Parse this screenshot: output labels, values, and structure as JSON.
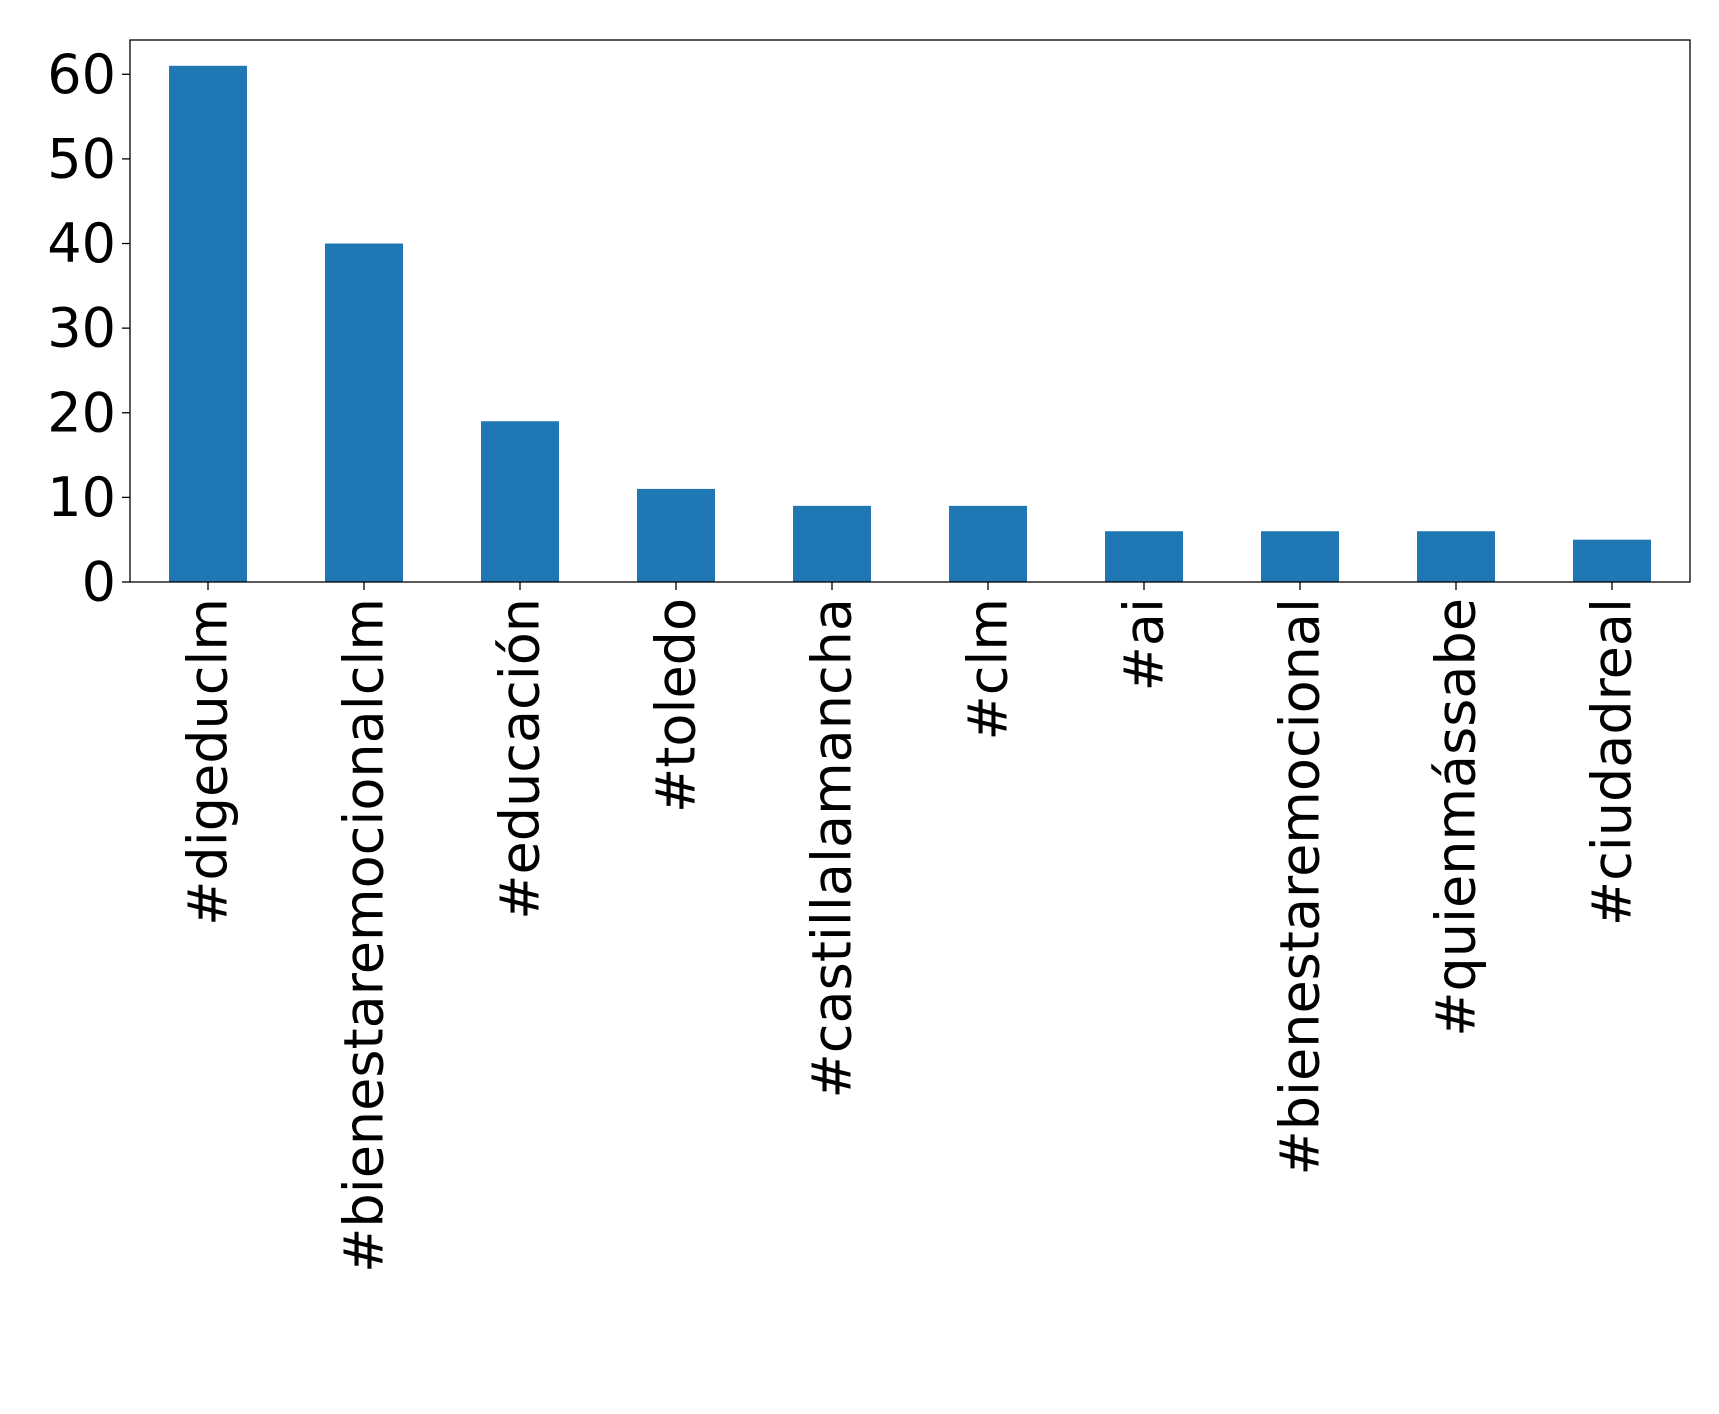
{
  "chart_data": {
    "type": "bar",
    "title": "",
    "xlabel": "",
    "ylabel": "",
    "categories": [
      "#digeduclm",
      "#bienestaremocionalclm",
      "#educación",
      "#toledo",
      "#castillalamancha",
      "#clm",
      "#ai",
      "#bienestaremocional",
      "#quienmássabe",
      "#ciudadreal"
    ],
    "values": [
      61,
      40,
      19,
      11,
      9,
      9,
      6,
      6,
      6,
      5
    ],
    "ylim": [
      0,
      64.05
    ],
    "yticks": [
      0,
      10,
      20,
      30,
      40,
      50,
      60
    ],
    "grid": false,
    "legend": "none",
    "bar_color": "#1f77b4",
    "axis_color": "#000000"
  }
}
